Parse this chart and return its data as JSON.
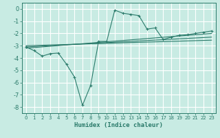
{
  "title": "",
  "xlabel": "Humidex (Indice chaleur)",
  "ylabel": "",
  "bg_color": "#c8ebe3",
  "grid_color": "#ffffff",
  "line_color": "#2a7a6a",
  "xlim": [
    -0.5,
    23.5
  ],
  "ylim": [
    -8.5,
    0.5
  ],
  "yticks": [
    0,
    -1,
    -2,
    -3,
    -4,
    -5,
    -6,
    -7,
    -8
  ],
  "xticks": [
    0,
    1,
    2,
    3,
    4,
    5,
    6,
    7,
    8,
    9,
    10,
    11,
    12,
    13,
    14,
    15,
    16,
    17,
    18,
    19,
    20,
    21,
    22,
    23
  ],
  "series_main": {
    "x": [
      0,
      1,
      2,
      3,
      4,
      5,
      6,
      7,
      8,
      9,
      10,
      11,
      12,
      13,
      14,
      15,
      16,
      17,
      18,
      19,
      20,
      21,
      22,
      23
    ],
    "y": [
      -3.1,
      -3.4,
      -3.85,
      -3.65,
      -3.6,
      -4.5,
      -5.55,
      -7.85,
      -6.25,
      -2.65,
      -2.65,
      -0.1,
      -0.35,
      -0.45,
      -0.55,
      -1.65,
      -1.55,
      -2.5,
      -2.3,
      -2.15,
      -2.1,
      -2.0,
      -1.9,
      -1.8
    ]
  },
  "series_lines": [
    {
      "x": [
        0,
        23
      ],
      "y": [
        -3.2,
        -2.0
      ]
    },
    {
      "x": [
        0,
        23
      ],
      "y": [
        -3.1,
        -2.3
      ]
    },
    {
      "x": [
        0,
        23
      ],
      "y": [
        -3.0,
        -2.55
      ]
    }
  ]
}
